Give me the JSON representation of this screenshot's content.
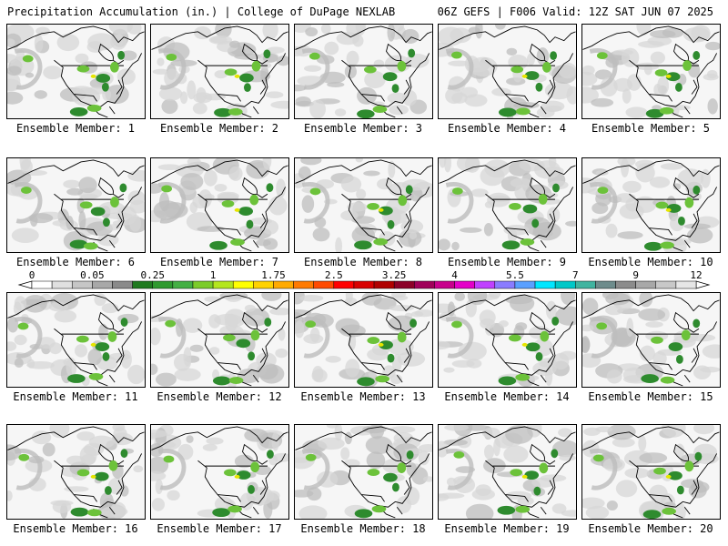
{
  "header": {
    "title_left": "Precipitation Accumulation (in.) | College of DuPage NEXLAB",
    "title_right": "06Z GEFS | F006 Valid: 12Z SAT JUN 07 2025"
  },
  "member_label_prefix": "Ensemble Member: ",
  "members": [
    "1",
    "2",
    "3",
    "4",
    "5",
    "6",
    "7",
    "8",
    "9",
    "10",
    "11",
    "12",
    "13",
    "14",
    "15",
    "16",
    "17",
    "18",
    "19",
    "20"
  ],
  "colorbar": {
    "tick_labels": [
      "0",
      "0.05",
      "0.25",
      "1",
      "1.75",
      "2.5",
      "3.25",
      "4",
      "5.5",
      "7",
      "9",
      "12"
    ],
    "colors": [
      "#ffffff",
      "#e0e0e0",
      "#c6c6c6",
      "#a8a8a8",
      "#8a8a8a",
      "#1f7a1f",
      "#2f9a2f",
      "#44b044",
      "#7ccc2a",
      "#b4e61e",
      "#ffff00",
      "#ffd200",
      "#ffaa00",
      "#ff7a00",
      "#ff4a00",
      "#ff0000",
      "#d80000",
      "#b00000",
      "#8c0028",
      "#a0005a",
      "#c8008c",
      "#e400c8",
      "#c040ff",
      "#8a7cff",
      "#5aa0ff",
      "#00e6ff",
      "#00c8c8",
      "#40b4a0",
      "#6e8c8c",
      "#8c8c8c",
      "#a8a8a8",
      "#c8c8c8",
      "#e6e6e6"
    ]
  },
  "map_colors": {
    "background": "#f6f6f6",
    "light_gray": "#d7d7d7",
    "mid_gray": "#bdbdbd",
    "green_dark": "#2e8b2e",
    "green_light": "#6cc23a",
    "yellow": "#e6e600",
    "outline": "#000000"
  }
}
